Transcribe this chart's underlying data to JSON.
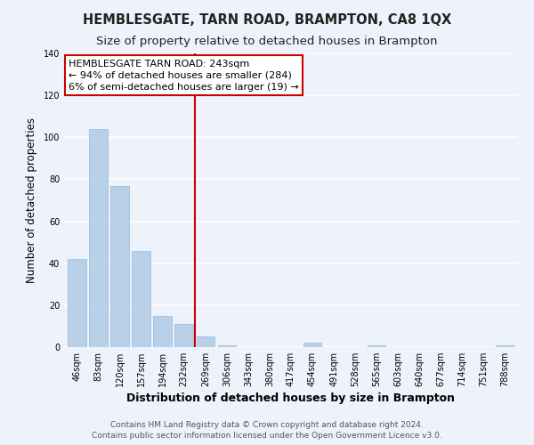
{
  "title": "HEMBLESGATE, TARN ROAD, BRAMPTON, CA8 1QX",
  "subtitle": "Size of property relative to detached houses in Brampton",
  "xlabel": "Distribution of detached houses by size in Brampton",
  "ylabel": "Number of detached properties",
  "bar_labels": [
    "46sqm",
    "83sqm",
    "120sqm",
    "157sqm",
    "194sqm",
    "232sqm",
    "269sqm",
    "306sqm",
    "343sqm",
    "380sqm",
    "417sqm",
    "454sqm",
    "491sqm",
    "528sqm",
    "565sqm",
    "603sqm",
    "640sqm",
    "677sqm",
    "714sqm",
    "751sqm",
    "788sqm"
  ],
  "bar_values": [
    42,
    104,
    77,
    46,
    15,
    11,
    5,
    1,
    0,
    0,
    0,
    2,
    0,
    0,
    1,
    0,
    0,
    0,
    0,
    0,
    1
  ],
  "bar_color": "#b8d0e8",
  "bar_edge_color": "#9ab8d8",
  "vline_x": 5.5,
  "vline_color": "#cc0000",
  "annotation_title": "HEMBLESGATE TARN ROAD: 243sqm",
  "annotation_line1": "← 94% of detached houses are smaller (284)",
  "annotation_line2": "6% of semi-detached houses are larger (19) →",
  "annotation_box_facecolor": "#ffffff",
  "annotation_box_edgecolor": "#cc0000",
  "ylim": [
    0,
    140
  ],
  "yticks": [
    0,
    20,
    40,
    60,
    80,
    100,
    120,
    140
  ],
  "footer1": "Contains HM Land Registry data © Crown copyright and database right 2024.",
  "footer2": "Contains public sector information licensed under the Open Government Licence v3.0.",
  "bg_color": "#eef2fa",
  "plot_bg_color": "#eef2fa",
  "grid_color": "#ffffff",
  "title_fontsize": 10.5,
  "subtitle_fontsize": 9.5,
  "xlabel_fontsize": 9,
  "ylabel_fontsize": 8.5,
  "tick_fontsize": 7,
  "footer_fontsize": 6.5,
  "annotation_title_fontsize": 8,
  "annotation_body_fontsize": 8
}
